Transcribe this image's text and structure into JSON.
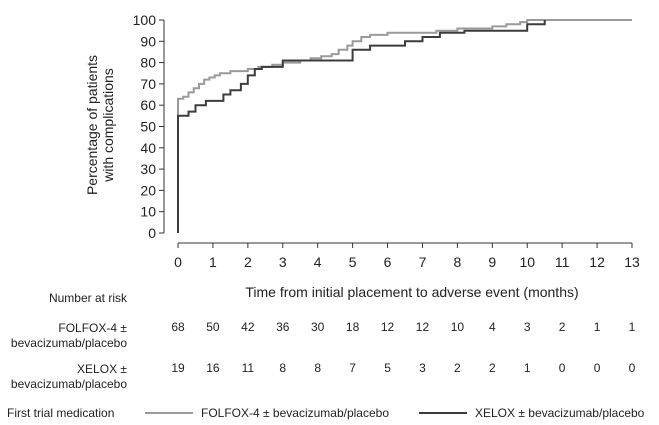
{
  "chart_data": {
    "type": "line",
    "step": true,
    "ylabel_line1": "Percentage of patients",
    "ylabel_line2": "with complications",
    "xlabel": "Time from initial placement to adverse event (months)",
    "ylim": [
      0,
      100
    ],
    "xlim": [
      0,
      13
    ],
    "yticks": [
      "0",
      "10",
      "20",
      "30",
      "40",
      "50",
      "60",
      "70",
      "80",
      "90",
      "100"
    ],
    "xticks": [
      "0",
      "1",
      "2",
      "3",
      "4",
      "5",
      "6",
      "7",
      "8",
      "9",
      "10",
      "11",
      "12",
      "13"
    ],
    "grid": false,
    "series": [
      {
        "name": "FOLFOX-4 ± bevacizumab/placebo",
        "color": "#9a9a9a",
        "points": [
          [
            0,
            0
          ],
          [
            0,
            63
          ],
          [
            0.15,
            64
          ],
          [
            0.3,
            66
          ],
          [
            0.45,
            68
          ],
          [
            0.6,
            70
          ],
          [
            0.75,
            72
          ],
          [
            0.9,
            73
          ],
          [
            1.05,
            74
          ],
          [
            1.2,
            75
          ],
          [
            1.5,
            76
          ],
          [
            2.0,
            77
          ],
          [
            2.3,
            78
          ],
          [
            2.7,
            79
          ],
          [
            3.0,
            80
          ],
          [
            3.5,
            81
          ],
          [
            3.8,
            82
          ],
          [
            4.1,
            83
          ],
          [
            4.4,
            84
          ],
          [
            4.6,
            86
          ],
          [
            4.85,
            88
          ],
          [
            5.0,
            90
          ],
          [
            5.25,
            92
          ],
          [
            5.5,
            93
          ],
          [
            6.0,
            94
          ],
          [
            7.4,
            95
          ],
          [
            8.0,
            96
          ],
          [
            9.0,
            97
          ],
          [
            9.4,
            98
          ],
          [
            9.8,
            99
          ],
          [
            10.0,
            100
          ],
          [
            13.0,
            100
          ]
        ]
      },
      {
        "name": "XELOX ± bevacizumab/placebo",
        "color": "#3c3c3c",
        "points": [
          [
            0,
            0
          ],
          [
            0,
            55
          ],
          [
            0.3,
            57
          ],
          [
            0.5,
            60
          ],
          [
            0.8,
            62
          ],
          [
            1.3,
            65
          ],
          [
            1.5,
            67
          ],
          [
            1.8,
            70
          ],
          [
            2.0,
            74
          ],
          [
            2.2,
            77
          ],
          [
            2.4,
            78
          ],
          [
            3.0,
            81
          ],
          [
            5.0,
            86
          ],
          [
            5.5,
            88
          ],
          [
            6.5,
            90
          ],
          [
            7.0,
            92
          ],
          [
            7.5,
            94
          ],
          [
            8.2,
            95
          ],
          [
            10.0,
            98
          ],
          [
            10.5,
            100
          ]
        ]
      }
    ]
  },
  "risk_table": {
    "heading": "Number at risk",
    "rows": [
      {
        "label_line1": "FOLFOX-4 ±",
        "label_line2": "bevacizumab/placebo",
        "values": [
          "68",
          "50",
          "42",
          "36",
          "30",
          "18",
          "12",
          "12",
          "10",
          "4",
          "3",
          "2",
          "1",
          "1"
        ]
      },
      {
        "label_line1": "XELOX ±",
        "label_line2": "bevacizumab/placebo",
        "values": [
          "19",
          "16",
          "11",
          "8",
          "8",
          "7",
          "5",
          "3",
          "2",
          "2",
          "1",
          "0",
          "0",
          "0"
        ]
      }
    ]
  },
  "legend": {
    "title": "First trial medication",
    "items": [
      {
        "label": "FOLFOX-4 ± bevacizumab/placebo",
        "color": "#9a9a9a"
      },
      {
        "label": "XELOX ± bevacizumab/placebo",
        "color": "#3c3c3c"
      }
    ]
  }
}
